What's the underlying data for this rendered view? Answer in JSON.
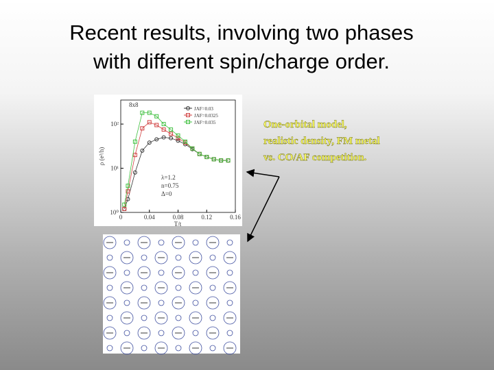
{
  "slide": {
    "title_lines": [
      "Recent results, involving two phases",
      "with different spin/charge order."
    ],
    "note_lines": [
      "One-orbital model,",
      "realistic density, FM metal",
      "vs. CO/AF competition."
    ]
  },
  "chart_data": {
    "type": "line",
    "title": "8x8",
    "x_label": "T/t",
    "y_label": "ρ (e²/h)",
    "x": [
      0.005,
      0.01,
      0.02,
      0.03,
      0.04,
      0.05,
      0.06,
      0.07,
      0.08,
      0.09,
      0.1,
      0.11,
      0.12,
      0.13,
      0.14,
      0.15
    ],
    "series": [
      {
        "name": "JAF=0.03",
        "color": "#333333",
        "marker": "circle",
        "values": [
          1.2,
          2,
          8,
          25,
          38,
          45,
          50,
          48,
          42,
          35,
          27,
          21,
          18,
          16,
          15,
          15
        ]
      },
      {
        "name": "JAF=0.0325",
        "color": "#d04040",
        "marker": "square",
        "values": [
          1.2,
          3,
          20,
          80,
          110,
          95,
          75,
          60,
          48,
          38,
          28,
          21,
          18,
          16,
          15,
          15
        ]
      },
      {
        "name": "JAF=0.035",
        "color": "#40c040",
        "marker": "square",
        "values": [
          1.5,
          4,
          40,
          180,
          180,
          150,
          100,
          75,
          55,
          40,
          28,
          21,
          18,
          16,
          15,
          15
        ]
      }
    ],
    "xlim": [
      0,
      0.16
    ],
    "xticks": [
      0,
      0.04,
      0.08,
      0.12,
      0.16
    ],
    "ylim": [
      1,
      350
    ],
    "log_y": true,
    "yticks": [
      {
        "value": 1,
        "label": "10⁰"
      },
      {
        "value": 10,
        "label": "10¹"
      },
      {
        "value": 100,
        "label": "10²"
      }
    ],
    "annotations": [
      "λ=1.2",
      "n=0.75",
      "Δ=0"
    ]
  }
}
